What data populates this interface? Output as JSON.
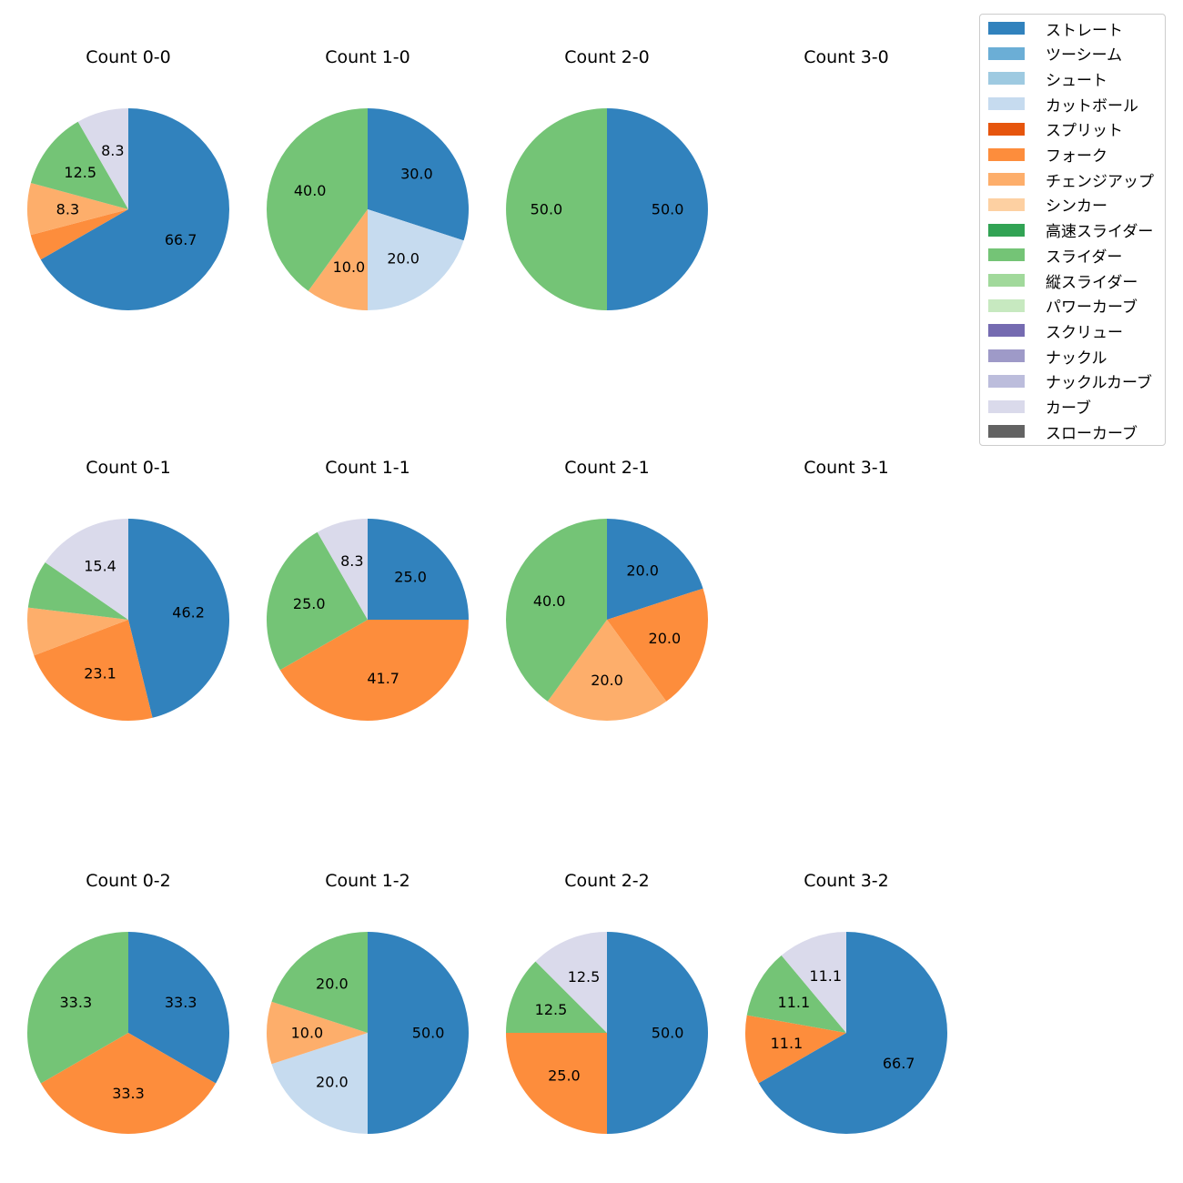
{
  "chart_data": {
    "type": "pie",
    "legend": {
      "placement": "top-right",
      "entries": [
        {
          "name": "ストレート",
          "color": "#3182bd"
        },
        {
          "name": "ツーシーム",
          "color": "#6baed6"
        },
        {
          "name": "シュート",
          "color": "#9ecae1"
        },
        {
          "name": "カットボール",
          "color": "#c6dbef"
        },
        {
          "name": "スプリット",
          "color": "#e6550d"
        },
        {
          "name": "フォーク",
          "color": "#fd8d3c"
        },
        {
          "name": "チェンジアップ",
          "color": "#fdae6b"
        },
        {
          "name": "シンカー",
          "color": "#fdd0a2"
        },
        {
          "name": "高速スライダー",
          "color": "#31a354"
        },
        {
          "name": "スライダー",
          "color": "#74c476"
        },
        {
          "name": "縦スライダー",
          "color": "#a1d99b"
        },
        {
          "name": "パワーカーブ",
          "color": "#c7e9c0"
        },
        {
          "name": "スクリュー",
          "color": "#756bb1"
        },
        {
          "name": "ナックル",
          "color": "#9e9ac8"
        },
        {
          "name": "ナックルカーブ",
          "color": "#bcbddc"
        },
        {
          "name": "カーブ",
          "color": "#dadaeb"
        },
        {
          "name": "スローカーブ",
          "color": "#636363"
        }
      ]
    },
    "charts": [
      {
        "title": "Count 0-0",
        "slices": [
          {
            "pitch": "ストレート",
            "value": 66.7,
            "label": "66.7"
          },
          {
            "pitch": "フォーク",
            "value": 4.2,
            "label": ""
          },
          {
            "pitch": "チェンジアップ",
            "value": 8.3,
            "label": "8.3"
          },
          {
            "pitch": "スライダー",
            "value": 12.5,
            "label": "12.5"
          },
          {
            "pitch": "カーブ",
            "value": 8.3,
            "label": "8.3"
          }
        ]
      },
      {
        "title": "Count 1-0",
        "slices": [
          {
            "pitch": "ストレート",
            "value": 30.0,
            "label": "30.0"
          },
          {
            "pitch": "カットボール",
            "value": 20.0,
            "label": "20.0"
          },
          {
            "pitch": "チェンジアップ",
            "value": 10.0,
            "label": "10.0"
          },
          {
            "pitch": "スライダー",
            "value": 40.0,
            "label": "40.0"
          }
        ]
      },
      {
        "title": "Count 2-0",
        "slices": [
          {
            "pitch": "ストレート",
            "value": 50.0,
            "label": "50.0"
          },
          {
            "pitch": "スライダー",
            "value": 50.0,
            "label": "50.0"
          }
        ]
      },
      {
        "title": "Count 3-0",
        "slices": []
      },
      {
        "title": "Count 0-1",
        "slices": [
          {
            "pitch": "ストレート",
            "value": 46.2,
            "label": "46.2"
          },
          {
            "pitch": "フォーク",
            "value": 23.1,
            "label": "23.1"
          },
          {
            "pitch": "チェンジアップ",
            "value": 7.7,
            "label": ""
          },
          {
            "pitch": "スライダー",
            "value": 7.7,
            "label": ""
          },
          {
            "pitch": "カーブ",
            "value": 15.4,
            "label": "15.4"
          }
        ]
      },
      {
        "title": "Count 1-1",
        "slices": [
          {
            "pitch": "ストレート",
            "value": 25.0,
            "label": "25.0"
          },
          {
            "pitch": "フォーク",
            "value": 41.7,
            "label": "41.7"
          },
          {
            "pitch": "スライダー",
            "value": 25.0,
            "label": "25.0"
          },
          {
            "pitch": "カーブ",
            "value": 8.3,
            "label": "8.3"
          }
        ]
      },
      {
        "title": "Count 2-1",
        "slices": [
          {
            "pitch": "ストレート",
            "value": 20.0,
            "label": "20.0"
          },
          {
            "pitch": "フォーク",
            "value": 20.0,
            "label": "20.0"
          },
          {
            "pitch": "チェンジアップ",
            "value": 20.0,
            "label": "20.0"
          },
          {
            "pitch": "スライダー",
            "value": 40.0,
            "label": "40.0"
          }
        ]
      },
      {
        "title": "Count 3-1",
        "slices": []
      },
      {
        "title": "Count 0-2",
        "slices": [
          {
            "pitch": "ストレート",
            "value": 33.3,
            "label": "33.3"
          },
          {
            "pitch": "フォーク",
            "value": 33.3,
            "label": "33.3"
          },
          {
            "pitch": "スライダー",
            "value": 33.3,
            "label": "33.3"
          }
        ]
      },
      {
        "title": "Count 1-2",
        "slices": [
          {
            "pitch": "ストレート",
            "value": 50.0,
            "label": "50.0"
          },
          {
            "pitch": "カットボール",
            "value": 20.0,
            "label": "20.0"
          },
          {
            "pitch": "チェンジアップ",
            "value": 10.0,
            "label": "10.0"
          },
          {
            "pitch": "スライダー",
            "value": 20.0,
            "label": "20.0"
          }
        ]
      },
      {
        "title": "Count 2-2",
        "slices": [
          {
            "pitch": "ストレート",
            "value": 50.0,
            "label": "50.0"
          },
          {
            "pitch": "フォーク",
            "value": 25.0,
            "label": "25.0"
          },
          {
            "pitch": "スライダー",
            "value": 12.5,
            "label": "12.5"
          },
          {
            "pitch": "カーブ",
            "value": 12.5,
            "label": "12.5"
          }
        ]
      },
      {
        "title": "Count 3-2",
        "slices": [
          {
            "pitch": "ストレート",
            "value": 66.7,
            "label": "66.7"
          },
          {
            "pitch": "フォーク",
            "value": 11.1,
            "label": "11.1"
          },
          {
            "pitch": "スライダー",
            "value": 11.1,
            "label": "11.1"
          },
          {
            "pitch": "カーブ",
            "value": 11.1,
            "label": "11.1"
          }
        ]
      }
    ]
  }
}
